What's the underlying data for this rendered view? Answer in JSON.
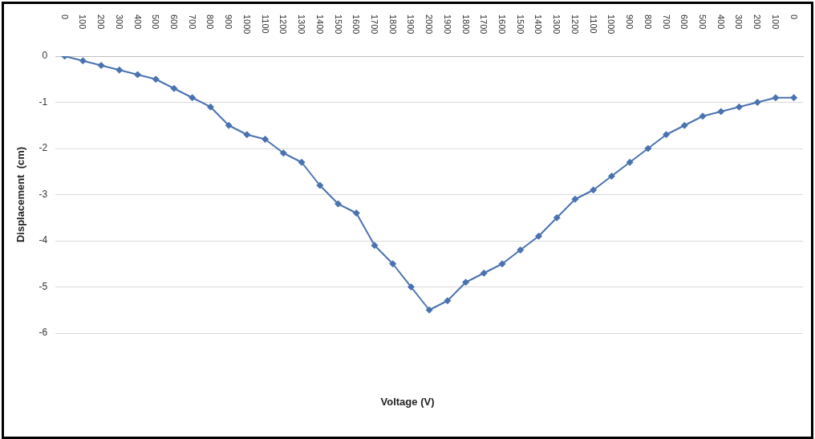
{
  "chart_data": {
    "type": "line",
    "annotations": [
      "Voltage (V)"
    ],
    "ylabel": "Displacement  (cm)",
    "categories": [
      "0",
      "100",
      "200",
      "300",
      "400",
      "500",
      "600",
      "700",
      "800",
      "900",
      "1000",
      "1100",
      "1200",
      "1300",
      "1400",
      "1500",
      "1600",
      "1700",
      "1800",
      "1900",
      "2000",
      "1900",
      "1800",
      "1700",
      "1600",
      "1500",
      "1400",
      "1300",
      "1200",
      "1100",
      "1000",
      "900",
      "800",
      "700",
      "600",
      "500",
      "400",
      "300",
      "200",
      "100",
      "0"
    ],
    "series": [
      {
        "color": "#4a72b0",
        "values": [
          0,
          -0.1,
          -0.2,
          -0.3,
          -0.4,
          -0.5,
          -0.7,
          -0.9,
          -1.1,
          -1.5,
          -1.7,
          -1.8,
          -2.1,
          -2.3,
          -2.8,
          -3.2,
          -3.4,
          -4.1,
          -4.5,
          -5.0,
          -5.5,
          -5.3,
          -4.9,
          -4.7,
          -4.5,
          -4.2,
          -3.9,
          -3.5,
          -3.1,
          -2.9,
          -2.6,
          -2.3,
          -2.0,
          -1.7,
          -1.5,
          -1.3,
          -1.2,
          -1.1,
          -1.0,
          -0.9,
          -0.9
        ]
      }
    ],
    "ylim": [
      -6,
      0
    ],
    "yticks": [
      -6,
      -5,
      -4,
      -3,
      -2,
      -1,
      0
    ],
    "grid": "y",
    "legend": false,
    "marker": "diamond",
    "line_style": "solid"
  }
}
